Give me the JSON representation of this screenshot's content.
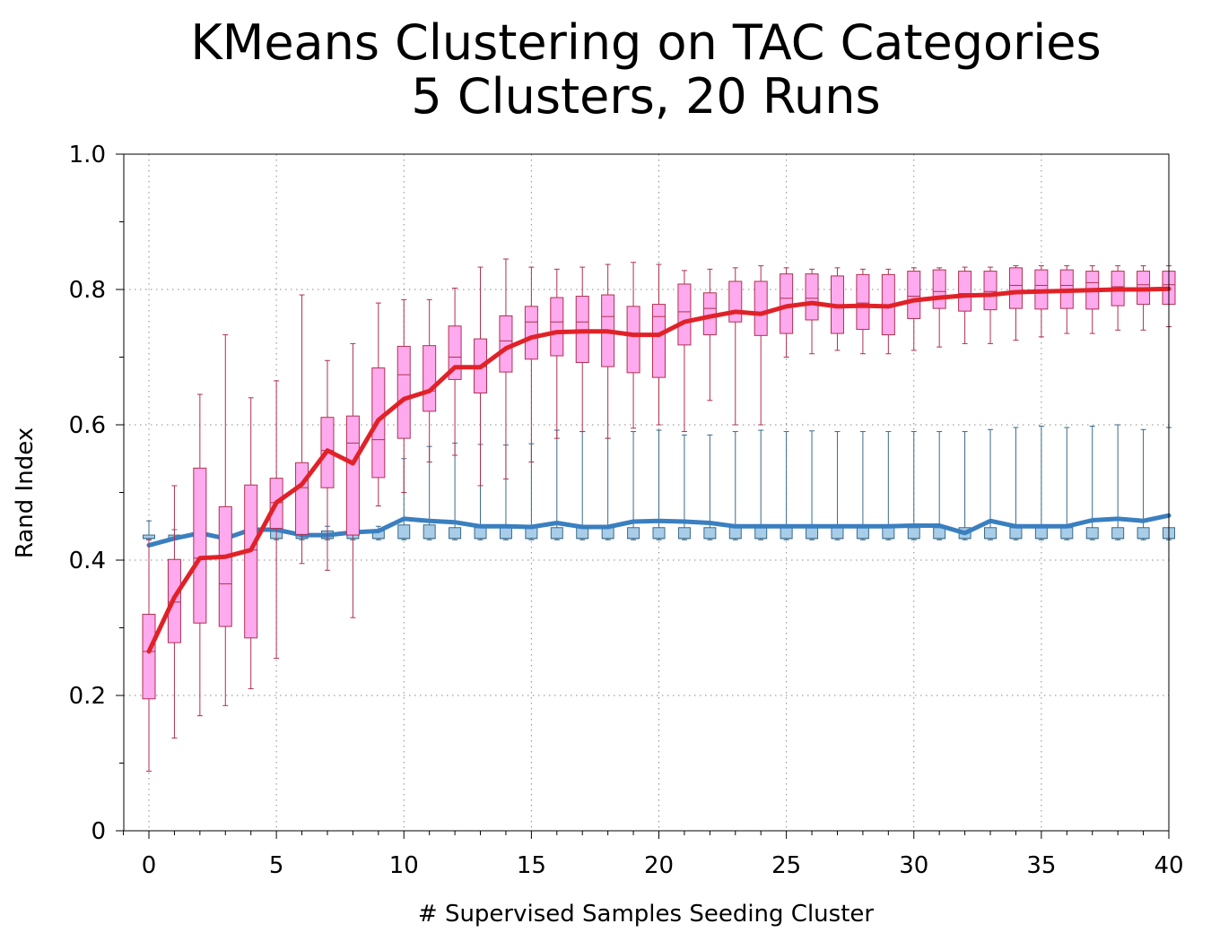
{
  "chart_data": {
    "type": "box",
    "title": "KMeans Clustering on TAC Categories",
    "subtitle": "5 Clusters, 20 Runs",
    "xlabel": "# Supervised Samples Seeding Cluster",
    "ylabel": "Rand Index",
    "xlim": [
      -1,
      40
    ],
    "ylim": [
      0,
      1.0
    ],
    "xticks": [
      0,
      5,
      10,
      15,
      20,
      25,
      30,
      35,
      40
    ],
    "xtick_labels": [
      "0",
      "5",
      "10",
      "15",
      "20",
      "25",
      "30",
      "35",
      "40"
    ],
    "yticks": [
      0,
      0.2,
      0.4,
      0.6,
      0.8,
      1.0
    ],
    "ytick_labels": [
      "0",
      "0.2",
      "0.4",
      "0.6",
      "0.8",
      "1.0"
    ],
    "grid": true,
    "colors": {
      "red_line": "#e02228",
      "red_box_fill": "#ffaaee",
      "red_box_stroke": "#b03050",
      "blue_line": "#3a7fc0",
      "blue_box_fill": "#a8cde8",
      "blue_box_stroke": "#3a6a8a"
    },
    "series": [
      {
        "x": [
          0,
          1,
          2,
          3,
          4,
          5,
          6,
          7,
          8,
          9,
          10,
          11,
          12,
          13,
          14,
          15,
          16,
          17,
          18,
          19,
          20,
          21,
          22,
          23,
          24,
          25,
          26,
          27,
          28,
          29,
          30,
          31,
          32,
          33,
          34,
          35,
          36,
          37,
          38,
          39,
          40
        ],
        "mean": [
          0.265,
          0.345,
          0.403,
          0.405,
          0.415,
          0.485,
          0.512,
          0.562,
          0.543,
          0.607,
          0.638,
          0.65,
          0.685,
          0.685,
          0.713,
          0.729,
          0.737,
          0.738,
          0.738,
          0.733,
          0.733,
          0.752,
          0.76,
          0.767,
          0.764,
          0.775,
          0.78,
          0.775,
          0.776,
          0.775,
          0.784,
          0.788,
          0.791,
          0.792,
          0.796,
          0.797,
          0.798,
          0.799,
          0.8,
          0.8,
          0.801
        ],
        "q1": [
          0.195,
          0.278,
          0.307,
          0.302,
          0.285,
          0.447,
          0.438,
          0.507,
          0.437,
          0.522,
          0.58,
          0.62,
          0.667,
          0.647,
          0.678,
          0.697,
          0.702,
          0.692,
          0.686,
          0.677,
          0.67,
          0.718,
          0.733,
          0.752,
          0.732,
          0.735,
          0.755,
          0.735,
          0.741,
          0.733,
          0.757,
          0.772,
          0.768,
          0.77,
          0.772,
          0.771,
          0.772,
          0.771,
          0.776,
          0.778,
          0.778
        ],
        "median": [
          0.265,
          0.338,
          0.403,
          0.365,
          0.415,
          0.485,
          0.507,
          0.562,
          0.573,
          0.578,
          0.674,
          0.65,
          0.7,
          0.686,
          0.724,
          0.752,
          0.752,
          0.752,
          0.76,
          0.733,
          0.76,
          0.767,
          0.772,
          0.767,
          0.764,
          0.787,
          0.787,
          0.775,
          0.78,
          0.775,
          0.79,
          0.797,
          0.794,
          0.797,
          0.806,
          0.806,
          0.806,
          0.81,
          0.804,
          0.807,
          0.807
        ],
        "q3": [
          0.32,
          0.401,
          0.536,
          0.479,
          0.511,
          0.521,
          0.544,
          0.611,
          0.613,
          0.684,
          0.716,
          0.717,
          0.746,
          0.727,
          0.761,
          0.775,
          0.788,
          0.79,
          0.792,
          0.775,
          0.778,
          0.808,
          0.795,
          0.812,
          0.812,
          0.823,
          0.823,
          0.82,
          0.822,
          0.822,
          0.827,
          0.829,
          0.827,
          0.827,
          0.832,
          0.829,
          0.829,
          0.827,
          0.827,
          0.827,
          0.827
        ],
        "whisker_low": [
          0.088,
          0.137,
          0.17,
          0.185,
          0.21,
          0.255,
          0.395,
          0.385,
          0.315,
          0.48,
          0.5,
          0.545,
          0.555,
          0.51,
          0.52,
          0.545,
          0.58,
          0.59,
          0.58,
          0.595,
          0.6,
          0.59,
          0.636,
          0.6,
          0.6,
          0.7,
          0.705,
          0.71,
          0.705,
          0.705,
          0.71,
          0.715,
          0.72,
          0.72,
          0.725,
          0.73,
          0.735,
          0.735,
          0.74,
          0.74,
          0.745
        ],
        "whisker_high": [
          0.43,
          0.51,
          0.645,
          0.733,
          0.64,
          0.665,
          0.792,
          0.695,
          0.72,
          0.78,
          0.785,
          0.785,
          0.802,
          0.833,
          0.845,
          0.833,
          0.83,
          0.833,
          0.837,
          0.84,
          0.837,
          0.828,
          0.83,
          0.832,
          0.835,
          0.832,
          0.83,
          0.832,
          0.83,
          0.83,
          0.832,
          0.832,
          0.833,
          0.833,
          0.835,
          0.835,
          0.835,
          0.835,
          0.835,
          0.835,
          0.835
        ]
      },
      {
        "x": [
          0,
          1,
          2,
          3,
          4,
          5,
          6,
          7,
          8,
          9,
          10,
          11,
          12,
          13,
          14,
          15,
          16,
          17,
          18,
          19,
          20,
          21,
          22,
          23,
          24,
          25,
          26,
          27,
          28,
          29,
          30,
          31,
          32,
          33,
          34,
          35,
          36,
          37,
          38,
          39,
          40
        ],
        "mean": [
          0.422,
          0.432,
          0.44,
          0.432,
          0.445,
          0.445,
          0.437,
          0.437,
          0.441,
          0.443,
          0.461,
          0.458,
          0.456,
          0.45,
          0.45,
          0.449,
          0.455,
          0.449,
          0.449,
          0.457,
          0.458,
          0.457,
          0.455,
          0.45,
          0.45,
          0.45,
          0.45,
          0.45,
          0.45,
          0.45,
          0.451,
          0.451,
          0.44,
          0.458,
          0.45,
          0.45,
          0.45,
          0.459,
          0.461,
          0.458,
          0.466
        ],
        "q1": [
          0.432,
          0.432,
          0.432,
          0.432,
          0.432,
          0.432,
          0.432,
          0.432,
          0.432,
          0.432,
          0.432,
          0.432,
          0.432,
          0.432,
          0.432,
          0.432,
          0.432,
          0.432,
          0.432,
          0.432,
          0.432,
          0.432,
          0.432,
          0.432,
          0.432,
          0.432,
          0.432,
          0.432,
          0.432,
          0.432,
          0.432,
          0.432,
          0.432,
          0.432,
          0.432,
          0.432,
          0.432,
          0.432,
          0.432,
          0.432,
          0.432
        ],
        "median": [
          0.432,
          0.432,
          0.432,
          0.432,
          0.432,
          0.432,
          0.432,
          0.432,
          0.432,
          0.432,
          0.432,
          0.432,
          0.432,
          0.432,
          0.432,
          0.432,
          0.432,
          0.432,
          0.432,
          0.432,
          0.432,
          0.432,
          0.432,
          0.432,
          0.432,
          0.432,
          0.432,
          0.432,
          0.432,
          0.432,
          0.432,
          0.432,
          0.432,
          0.432,
          0.432,
          0.432,
          0.432,
          0.432,
          0.432,
          0.432,
          0.432
        ],
        "q3": [
          0.437,
          0.437,
          0.437,
          0.437,
          0.437,
          0.45,
          0.443,
          0.443,
          0.443,
          0.443,
          0.452,
          0.452,
          0.448,
          0.448,
          0.448,
          0.448,
          0.448,
          0.448,
          0.448,
          0.448,
          0.448,
          0.448,
          0.448,
          0.448,
          0.448,
          0.448,
          0.448,
          0.448,
          0.448,
          0.448,
          0.448,
          0.448,
          0.448,
          0.448,
          0.448,
          0.448,
          0.448,
          0.448,
          0.448,
          0.448,
          0.448
        ],
        "whisker_low": [
          0.43,
          0.43,
          0.43,
          0.43,
          0.43,
          0.43,
          0.43,
          0.43,
          0.43,
          0.43,
          0.43,
          0.43,
          0.43,
          0.43,
          0.43,
          0.43,
          0.43,
          0.43,
          0.43,
          0.43,
          0.43,
          0.43,
          0.43,
          0.43,
          0.43,
          0.43,
          0.43,
          0.43,
          0.43,
          0.43,
          0.43,
          0.43,
          0.43,
          0.43,
          0.43,
          0.43,
          0.43,
          0.43,
          0.43,
          0.43,
          0.43
        ],
        "whisker_high": [
          0.458,
          0.445,
          0.445,
          0.445,
          0.445,
          0.47,
          0.45,
          0.45,
          0.45,
          0.45,
          0.55,
          0.568,
          0.573,
          0.571,
          0.57,
          0.572,
          0.592,
          0.59,
          0.58,
          0.59,
          0.592,
          0.585,
          0.585,
          0.59,
          0.592,
          0.59,
          0.591,
          0.59,
          0.59,
          0.59,
          0.59,
          0.59,
          0.59,
          0.593,
          0.596,
          0.598,
          0.596,
          0.598,
          0.6,
          0.593,
          0.596
        ]
      }
    ]
  }
}
